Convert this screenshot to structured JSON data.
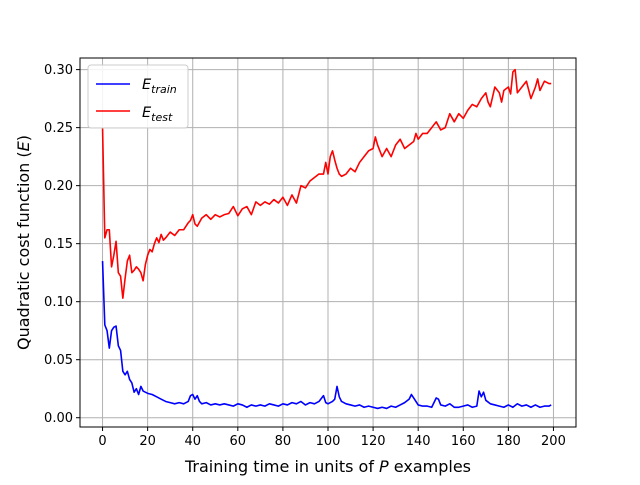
{
  "chart_data": {
    "type": "line",
    "xlabel": "Training time in units of P examples",
    "xlabel_parts": [
      "Training time in units of ",
      "P",
      " examples"
    ],
    "ylabel": "Quadratic cost function (E)",
    "ylabel_parts": [
      "Quadratic cost function (",
      "E",
      ")"
    ],
    "xlim": [
      -10,
      210
    ],
    "ylim": [
      -0.008,
      0.31
    ],
    "xticks": [
      0,
      20,
      40,
      60,
      80,
      100,
      120,
      140,
      160,
      180,
      200
    ],
    "xtick_labels": [
      "0",
      "20",
      "40",
      "60",
      "80",
      "100",
      "120",
      "140",
      "160",
      "180",
      "200"
    ],
    "yticks": [
      0.0,
      0.05,
      0.1,
      0.15,
      0.2,
      0.25,
      0.3
    ],
    "ytick_labels": [
      "0.00",
      "0.05",
      "0.10",
      "0.15",
      "0.20",
      "0.25",
      "0.30"
    ],
    "grid": true,
    "legend_position": "upper-left",
    "series": [
      {
        "name": "E_train",
        "legend_main": "E",
        "legend_sub": "train",
        "color": "#0000ff",
        "points": [
          [
            0,
            0.135
          ],
          [
            1,
            0.08
          ],
          [
            2,
            0.075
          ],
          [
            3,
            0.06
          ],
          [
            4,
            0.075
          ],
          [
            5,
            0.078
          ],
          [
            6,
            0.079
          ],
          [
            7,
            0.062
          ],
          [
            8,
            0.058
          ],
          [
            9,
            0.04
          ],
          [
            10,
            0.037
          ],
          [
            11,
            0.04
          ],
          [
            12,
            0.033
          ],
          [
            13,
            0.03
          ],
          [
            14,
            0.022
          ],
          [
            15,
            0.025
          ],
          [
            16,
            0.02
          ],
          [
            17,
            0.027
          ],
          [
            18,
            0.023
          ],
          [
            19,
            0.022
          ],
          [
            20,
            0.021
          ],
          [
            22,
            0.02
          ],
          [
            24,
            0.018
          ],
          [
            26,
            0.016
          ],
          [
            28,
            0.014
          ],
          [
            30,
            0.013
          ],
          [
            32,
            0.012
          ],
          [
            34,
            0.013
          ],
          [
            36,
            0.012
          ],
          [
            38,
            0.014
          ],
          [
            39,
            0.019
          ],
          [
            40,
            0.02
          ],
          [
            41,
            0.016
          ],
          [
            42,
            0.019
          ],
          [
            43,
            0.014
          ],
          [
            44,
            0.012
          ],
          [
            46,
            0.013
          ],
          [
            48,
            0.011
          ],
          [
            50,
            0.012
          ],
          [
            52,
            0.011
          ],
          [
            54,
            0.012
          ],
          [
            56,
            0.011
          ],
          [
            58,
            0.01
          ],
          [
            60,
            0.012
          ],
          [
            62,
            0.011
          ],
          [
            64,
            0.009
          ],
          [
            66,
            0.011
          ],
          [
            68,
            0.01
          ],
          [
            70,
            0.011
          ],
          [
            72,
            0.01
          ],
          [
            74,
            0.012
          ],
          [
            76,
            0.011
          ],
          [
            78,
            0.01
          ],
          [
            80,
            0.012
          ],
          [
            82,
            0.011
          ],
          [
            84,
            0.013
          ],
          [
            86,
            0.012
          ],
          [
            88,
            0.014
          ],
          [
            90,
            0.011
          ],
          [
            92,
            0.013
          ],
          [
            94,
            0.012
          ],
          [
            96,
            0.014
          ],
          [
            98,
            0.019
          ],
          [
            99,
            0.013
          ],
          [
            100,
            0.012
          ],
          [
            102,
            0.014
          ],
          [
            103,
            0.016
          ],
          [
            104,
            0.027
          ],
          [
            105,
            0.018
          ],
          [
            106,
            0.014
          ],
          [
            108,
            0.012
          ],
          [
            110,
            0.011
          ],
          [
            112,
            0.01
          ],
          [
            114,
            0.011
          ],
          [
            116,
            0.009
          ],
          [
            118,
            0.01
          ],
          [
            120,
            0.009
          ],
          [
            122,
            0.008
          ],
          [
            124,
            0.009
          ],
          [
            126,
            0.008
          ],
          [
            128,
            0.01
          ],
          [
            130,
            0.009
          ],
          [
            132,
            0.011
          ],
          [
            134,
            0.013
          ],
          [
            136,
            0.016
          ],
          [
            137,
            0.02
          ],
          [
            138,
            0.017
          ],
          [
            140,
            0.011
          ],
          [
            142,
            0.01
          ],
          [
            144,
            0.01
          ],
          [
            146,
            0.009
          ],
          [
            148,
            0.017
          ],
          [
            149,
            0.016
          ],
          [
            150,
            0.011
          ],
          [
            152,
            0.01
          ],
          [
            154,
            0.012
          ],
          [
            156,
            0.009
          ],
          [
            158,
            0.009
          ],
          [
            160,
            0.01
          ],
          [
            162,
            0.011
          ],
          [
            164,
            0.009
          ],
          [
            166,
            0.01
          ],
          [
            167,
            0.023
          ],
          [
            168,
            0.018
          ],
          [
            169,
            0.022
          ],
          [
            170,
            0.015
          ],
          [
            172,
            0.012
          ],
          [
            174,
            0.011
          ],
          [
            176,
            0.01
          ],
          [
            178,
            0.009
          ],
          [
            180,
            0.011
          ],
          [
            182,
            0.009
          ],
          [
            184,
            0.012
          ],
          [
            186,
            0.01
          ],
          [
            188,
            0.011
          ],
          [
            190,
            0.009
          ],
          [
            192,
            0.011
          ],
          [
            194,
            0.009
          ],
          [
            196,
            0.01
          ],
          [
            198,
            0.01
          ],
          [
            199,
            0.011
          ]
        ]
      },
      {
        "name": "E_test",
        "legend_main": "E",
        "legend_sub": "test",
        "color": "#ff0000",
        "points": [
          [
            0,
            0.25
          ],
          [
            1,
            0.155
          ],
          [
            2,
            0.162
          ],
          [
            3,
            0.162
          ],
          [
            4,
            0.13
          ],
          [
            5,
            0.14
          ],
          [
            6,
            0.152
          ],
          [
            7,
            0.125
          ],
          [
            8,
            0.122
          ],
          [
            9,
            0.103
          ],
          [
            10,
            0.12
          ],
          [
            11,
            0.135
          ],
          [
            12,
            0.14
          ],
          [
            13,
            0.125
          ],
          [
            14,
            0.127
          ],
          [
            15,
            0.13
          ],
          [
            16,
            0.128
          ],
          [
            17,
            0.125
          ],
          [
            18,
            0.118
          ],
          [
            19,
            0.132
          ],
          [
            20,
            0.14
          ],
          [
            21,
            0.145
          ],
          [
            22,
            0.143
          ],
          [
            23,
            0.15
          ],
          [
            24,
            0.155
          ],
          [
            25,
            0.151
          ],
          [
            26,
            0.158
          ],
          [
            27,
            0.153
          ],
          [
            28,
            0.155
          ],
          [
            30,
            0.16
          ],
          [
            32,
            0.157
          ],
          [
            34,
            0.162
          ],
          [
            36,
            0.162
          ],
          [
            38,
            0.168
          ],
          [
            39,
            0.17
          ],
          [
            40,
            0.175
          ],
          [
            41,
            0.167
          ],
          [
            42,
            0.165
          ],
          [
            44,
            0.172
          ],
          [
            46,
            0.175
          ],
          [
            48,
            0.171
          ],
          [
            50,
            0.175
          ],
          [
            52,
            0.173
          ],
          [
            54,
            0.175
          ],
          [
            56,
            0.176
          ],
          [
            58,
            0.182
          ],
          [
            60,
            0.174
          ],
          [
            62,
            0.18
          ],
          [
            64,
            0.182
          ],
          [
            66,
            0.175
          ],
          [
            68,
            0.186
          ],
          [
            70,
            0.183
          ],
          [
            72,
            0.186
          ],
          [
            74,
            0.184
          ],
          [
            76,
            0.188
          ],
          [
            78,
            0.185
          ],
          [
            80,
            0.19
          ],
          [
            82,
            0.183
          ],
          [
            84,
            0.192
          ],
          [
            86,
            0.185
          ],
          [
            88,
            0.2
          ],
          [
            90,
            0.198
          ],
          [
            92,
            0.204
          ],
          [
            94,
            0.207
          ],
          [
            96,
            0.21
          ],
          [
            98,
            0.21
          ],
          [
            99,
            0.22
          ],
          [
            100,
            0.21
          ],
          [
            101,
            0.225
          ],
          [
            102,
            0.23
          ],
          [
            103,
            0.222
          ],
          [
            104,
            0.215
          ],
          [
            105,
            0.21
          ],
          [
            106,
            0.208
          ],
          [
            108,
            0.21
          ],
          [
            110,
            0.215
          ],
          [
            112,
            0.212
          ],
          [
            114,
            0.22
          ],
          [
            116,
            0.225
          ],
          [
            118,
            0.23
          ],
          [
            120,
            0.232
          ],
          [
            121,
            0.242
          ],
          [
            122,
            0.235
          ],
          [
            124,
            0.225
          ],
          [
            126,
            0.232
          ],
          [
            128,
            0.225
          ],
          [
            130,
            0.235
          ],
          [
            132,
            0.24
          ],
          [
            134,
            0.232
          ],
          [
            136,
            0.235
          ],
          [
            138,
            0.238
          ],
          [
            139,
            0.245
          ],
          [
            140,
            0.24
          ],
          [
            142,
            0.245
          ],
          [
            144,
            0.245
          ],
          [
            146,
            0.25
          ],
          [
            148,
            0.255
          ],
          [
            150,
            0.248
          ],
          [
            152,
            0.25
          ],
          [
            154,
            0.262
          ],
          [
            156,
            0.255
          ],
          [
            158,
            0.262
          ],
          [
            160,
            0.258
          ],
          [
            162,
            0.265
          ],
          [
            164,
            0.27
          ],
          [
            166,
            0.268
          ],
          [
            168,
            0.275
          ],
          [
            170,
            0.28
          ],
          [
            171,
            0.272
          ],
          [
            172,
            0.268
          ],
          [
            174,
            0.285
          ],
          [
            176,
            0.28
          ],
          [
            177,
            0.272
          ],
          [
            178,
            0.282
          ],
          [
            180,
            0.285
          ],
          [
            181,
            0.279
          ],
          [
            182,
            0.298
          ],
          [
            183,
            0.3
          ],
          [
            184,
            0.28
          ],
          [
            186,
            0.285
          ],
          [
            188,
            0.29
          ],
          [
            190,
            0.275
          ],
          [
            192,
            0.285
          ],
          [
            193,
            0.292
          ],
          [
            194,
            0.282
          ],
          [
            196,
            0.29
          ],
          [
            198,
            0.288
          ],
          [
            199,
            0.288
          ]
        ]
      }
    ]
  }
}
